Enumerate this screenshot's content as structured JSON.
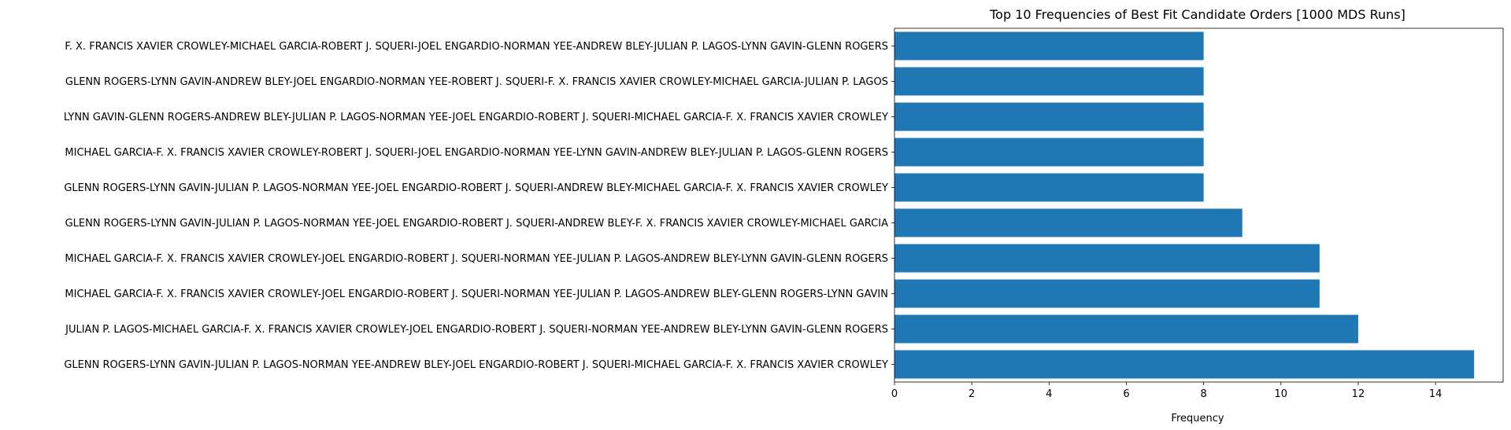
{
  "chart_data": {
    "type": "bar",
    "orientation": "horizontal",
    "title": "Top 10 Frequencies of Best Fit Candidate Orders [1000 MDS Runs]",
    "xlabel": "Frequency",
    "ylabel": "",
    "xlim": [
      0,
      15.75
    ],
    "xticks": [
      0,
      2,
      4,
      6,
      8,
      10,
      12,
      14
    ],
    "grid": false,
    "bar_color": "#1f77b4",
    "categories": [
      "GLENN ROGERS-LYNN GAVIN-JULIAN P. LAGOS-NORMAN YEE-ANDREW BLEY-JOEL ENGARDIO-ROBERT J. SQUERI-MICHAEL GARCIA-F. X. FRANCIS XAVIER CROWLEY",
      "JULIAN P. LAGOS-MICHAEL GARCIA-F. X. FRANCIS XAVIER CROWLEY-JOEL ENGARDIO-ROBERT J. SQUERI-NORMAN YEE-ANDREW BLEY-LYNN GAVIN-GLENN ROGERS",
      "MICHAEL GARCIA-F. X. FRANCIS XAVIER CROWLEY-JOEL ENGARDIO-ROBERT J. SQUERI-NORMAN YEE-JULIAN P. LAGOS-ANDREW BLEY-GLENN ROGERS-LYNN GAVIN",
      "MICHAEL GARCIA-F. X. FRANCIS XAVIER CROWLEY-JOEL ENGARDIO-ROBERT J. SQUERI-NORMAN YEE-JULIAN P. LAGOS-ANDREW BLEY-LYNN GAVIN-GLENN ROGERS",
      "GLENN ROGERS-LYNN GAVIN-JULIAN P. LAGOS-NORMAN YEE-JOEL ENGARDIO-ROBERT J. SQUERI-ANDREW BLEY-F. X. FRANCIS XAVIER CROWLEY-MICHAEL GARCIA",
      "GLENN ROGERS-LYNN GAVIN-JULIAN P. LAGOS-NORMAN YEE-JOEL ENGARDIO-ROBERT J. SQUERI-ANDREW BLEY-MICHAEL GARCIA-F. X. FRANCIS XAVIER CROWLEY",
      "MICHAEL GARCIA-F. X. FRANCIS XAVIER CROWLEY-ROBERT J. SQUERI-JOEL ENGARDIO-NORMAN YEE-LYNN GAVIN-ANDREW BLEY-JULIAN P. LAGOS-GLENN ROGERS",
      "LYNN GAVIN-GLENN ROGERS-ANDREW BLEY-JULIAN P. LAGOS-NORMAN YEE-JOEL ENGARDIO-ROBERT J. SQUERI-MICHAEL GARCIA-F. X. FRANCIS XAVIER CROWLEY",
      "GLENN ROGERS-LYNN GAVIN-ANDREW BLEY-JOEL ENGARDIO-NORMAN YEE-ROBERT J. SQUERI-F. X. FRANCIS XAVIER CROWLEY-MICHAEL GARCIA-JULIAN P. LAGOS",
      "F. X. FRANCIS XAVIER CROWLEY-MICHAEL GARCIA-ROBERT J. SQUERI-JOEL ENGARDIO-NORMAN YEE-ANDREW BLEY-JULIAN P. LAGOS-LYNN GAVIN-GLENN ROGERS"
    ],
    "values": [
      15,
      12,
      11,
      11,
      9,
      8,
      8,
      8,
      8,
      8
    ]
  }
}
